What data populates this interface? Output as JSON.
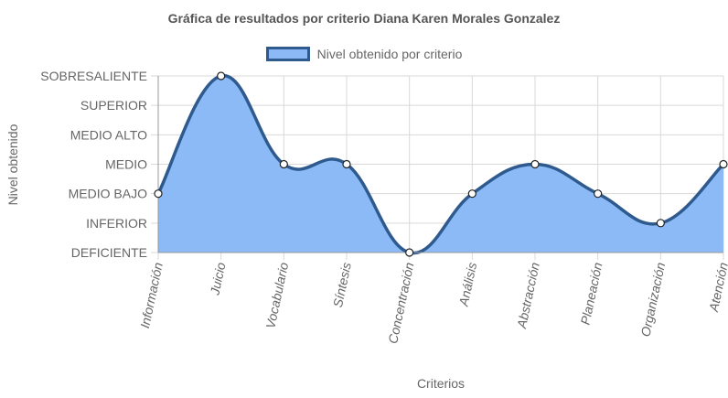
{
  "chart_data": {
    "type": "line",
    "title": "Gráfica de resultados por criterio Diana Karen Morales Gonzalez",
    "xlabel": "Criterios",
    "ylabel": "Nivel obtenido",
    "levels": [
      "DEFICIENTE",
      "INFERIOR",
      "MEDIO BAJO",
      "MEDIO",
      "MEDIO ALTO",
      "SUPERIOR",
      "SOBRESALIENTE"
    ],
    "categories": [
      "Información",
      "Juicio",
      "Vocabulario",
      "Síntesis",
      "Concentración",
      "Análisis",
      "Abstracción",
      "Planeación",
      "Organización",
      "Atención"
    ],
    "series": [
      {
        "name": "Nivel obtenido por criterio",
        "values": [
          "MEDIO BAJO",
          "SOBRESALIENTE",
          "MEDIO",
          "MEDIO",
          "DEFICIENTE",
          "MEDIO BAJO",
          "MEDIO",
          "MEDIO BAJO",
          "INFERIOR",
          "MEDIO"
        ]
      }
    ],
    "fill": true,
    "smooth": true,
    "grid": true,
    "legend_position": "top",
    "colors": {
      "line": "#2f5a8e",
      "fill": "#8bbaf6",
      "grid": "#d9d9d9",
      "point": "#ffffff"
    }
  }
}
